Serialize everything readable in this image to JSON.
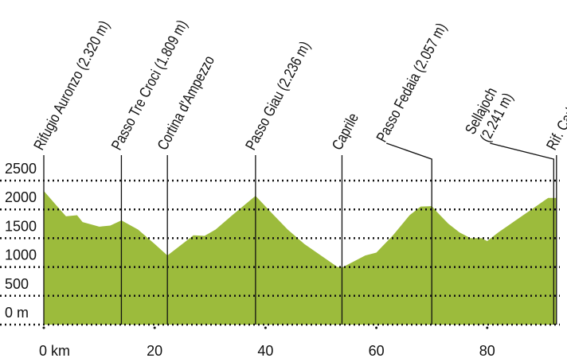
{
  "chart_data": {
    "type": "area",
    "series": [
      {
        "color": "#9cbb3c",
        "x": [
          0,
          2,
          4,
          6,
          7,
          10,
          12,
          14,
          17,
          20,
          22.3,
          25,
          27,
          29,
          31,
          34,
          38.2,
          41,
          44,
          47,
          50,
          53,
          54,
          56,
          58,
          60,
          63,
          66,
          68,
          70,
          71,
          73,
          75,
          77,
          79,
          80,
          82,
          85,
          88,
          91,
          92.5
        ],
        "values": [
          2320,
          2100,
          1880,
          1900,
          1780,
          1700,
          1720,
          1809,
          1650,
          1400,
          1200,
          1400,
          1550,
          1540,
          1650,
          1900,
          2236,
          1950,
          1650,
          1400,
          1200,
          1000,
          1000,
          1100,
          1200,
          1250,
          1550,
          1900,
          2050,
          2057,
          1950,
          1750,
          1600,
          1500,
          1500,
          1450,
          1600,
          1800,
          2000,
          2200,
          2200
        ]
      }
    ],
    "markers": [
      {
        "x": 0,
        "label": [
          "Rifugio Auronzo (2.320 m)"
        ]
      },
      {
        "x": 14,
        "label": [
          "Passo Tre Croci (1.809 m)"
        ]
      },
      {
        "x": 22.3,
        "label": [
          "Cortina d'Ampezzo"
        ]
      },
      {
        "x": 38.2,
        "label": [
          "Passo Giau (2.236 m)"
        ]
      },
      {
        "x": 53.8,
        "label": [
          "Caprile"
        ]
      },
      {
        "x": 70,
        "label": [
          "Passo Fedaia (2.057 m)"
        ]
      },
      {
        "x": 92,
        "label": [
          "Sellajoch",
          "(2.241 m)"
        ]
      },
      {
        "x": 92.5,
        "label": [
          "Rif. Carlo Valentini"
        ]
      }
    ],
    "xlim": [
      0,
      93
    ],
    "ylim": [
      0,
      2500
    ],
    "xticks": [
      {
        "value": 0,
        "label": "0 km"
      },
      20,
      40,
      60,
      80
    ],
    "yticks": [
      {
        "value": 0,
        "label": "0 m"
      },
      500,
      1000,
      1500,
      2000,
      2500
    ],
    "grid": true
  }
}
